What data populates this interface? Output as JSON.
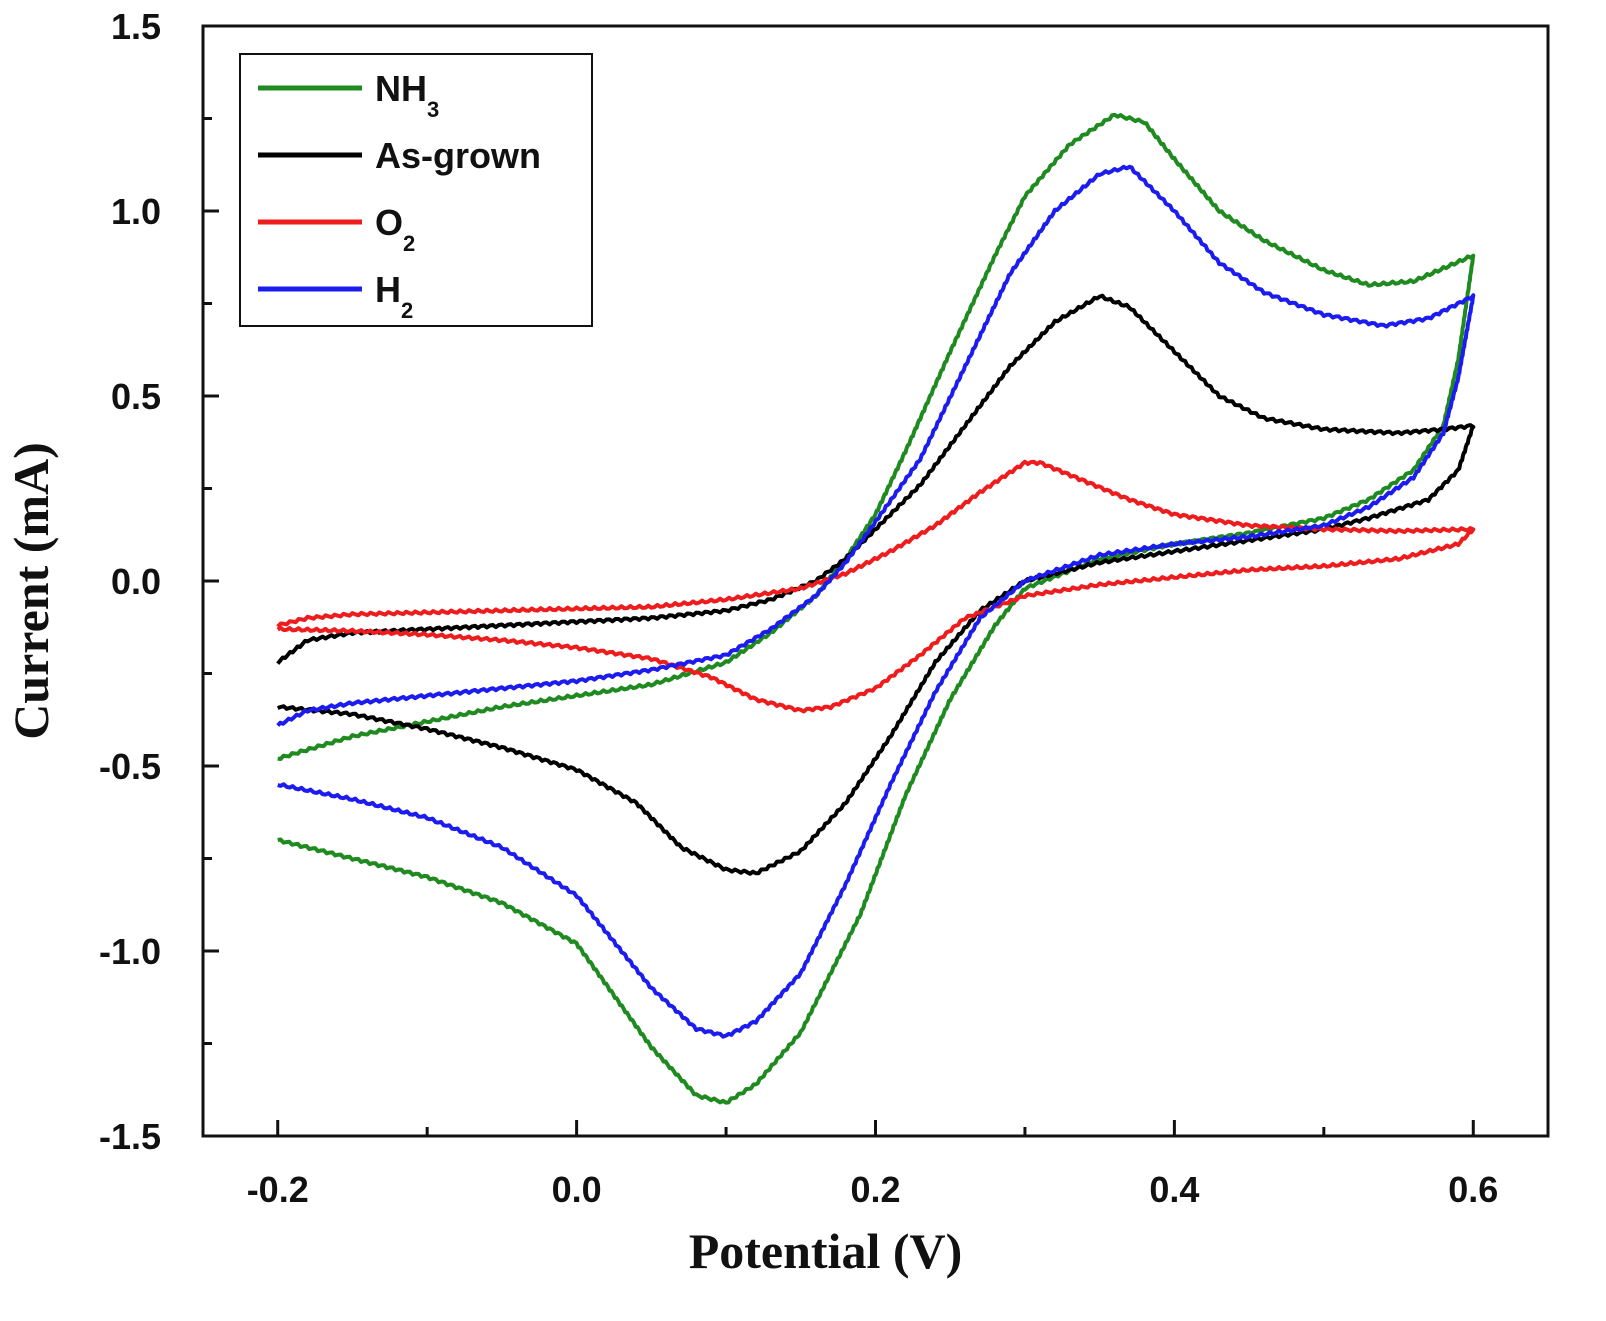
{
  "chart_data": {
    "type": "line",
    "title": "",
    "xlabel": "Potential (V)",
    "ylabel": "Current (mA)",
    "xlim": [
      -0.25,
      0.65
    ],
    "ylim": [
      -1.5,
      1.5
    ],
    "x_ticks": [
      -0.2,
      0.0,
      0.2,
      0.4,
      0.6
    ],
    "x_tick_labels": [
      "-0.2",
      "0.0",
      "0.2",
      "0.4",
      "0.6"
    ],
    "y_ticks": [
      -1.5,
      -1.0,
      -0.5,
      0.0,
      0.5,
      1.0,
      1.5
    ],
    "y_tick_labels": [
      "-1.5",
      "-1.0",
      "-0.5",
      "0.0",
      "0.5",
      "1.0",
      "1.5"
    ],
    "grid": false,
    "legend_position": "top-left",
    "series": [
      {
        "name": "NH3",
        "legend_main": "NH",
        "legend_sub": "3",
        "color": "#1f8a1f",
        "forward": [
          [
            -0.2,
            -0.48
          ],
          [
            -0.15,
            -0.42
          ],
          [
            -0.1,
            -0.38
          ],
          [
            -0.05,
            -0.34
          ],
          [
            0.0,
            -0.31
          ],
          [
            0.05,
            -0.28
          ],
          [
            0.1,
            -0.22
          ],
          [
            0.13,
            -0.14
          ],
          [
            0.16,
            -0.04
          ],
          [
            0.18,
            0.06
          ],
          [
            0.2,
            0.18
          ],
          [
            0.22,
            0.35
          ],
          [
            0.25,
            0.62
          ],
          [
            0.28,
            0.88
          ],
          [
            0.3,
            1.04
          ],
          [
            0.33,
            1.18
          ],
          [
            0.36,
            1.26
          ],
          [
            0.38,
            1.24
          ],
          [
            0.4,
            1.14
          ],
          [
            0.43,
            1.0
          ],
          [
            0.46,
            0.92
          ],
          [
            0.5,
            0.84
          ],
          [
            0.53,
            0.8
          ],
          [
            0.56,
            0.81
          ],
          [
            0.6,
            0.88
          ]
        ],
        "reverse": [
          [
            0.6,
            0.88
          ],
          [
            0.59,
            0.6
          ],
          [
            0.58,
            0.42
          ],
          [
            0.56,
            0.3
          ],
          [
            0.53,
            0.22
          ],
          [
            0.5,
            0.17
          ],
          [
            0.45,
            0.13
          ],
          [
            0.4,
            0.1
          ],
          [
            0.35,
            0.06
          ],
          [
            0.3,
            -0.02
          ],
          [
            0.28,
            -0.12
          ],
          [
            0.25,
            -0.32
          ],
          [
            0.22,
            -0.58
          ],
          [
            0.19,
            -0.9
          ],
          [
            0.15,
            -1.22
          ],
          [
            0.12,
            -1.36
          ],
          [
            0.1,
            -1.41
          ],
          [
            0.08,
            -1.39
          ],
          [
            0.05,
            -1.26
          ],
          [
            0.0,
            -0.98
          ],
          [
            -0.05,
            -0.87
          ],
          [
            -0.1,
            -0.8
          ],
          [
            -0.15,
            -0.75
          ],
          [
            -0.2,
            -0.7
          ]
        ]
      },
      {
        "name": "As-grown",
        "color": "#000000",
        "forward": [
          [
            -0.2,
            -0.22
          ],
          [
            -0.18,
            -0.16
          ],
          [
            -0.15,
            -0.14
          ],
          [
            -0.1,
            -0.13
          ],
          [
            -0.05,
            -0.12
          ],
          [
            0.0,
            -0.11
          ],
          [
            0.05,
            -0.1
          ],
          [
            0.1,
            -0.08
          ],
          [
            0.13,
            -0.05
          ],
          [
            0.16,
            0.0
          ],
          [
            0.18,
            0.06
          ],
          [
            0.2,
            0.14
          ],
          [
            0.23,
            0.26
          ],
          [
            0.26,
            0.42
          ],
          [
            0.29,
            0.58
          ],
          [
            0.32,
            0.7
          ],
          [
            0.35,
            0.77
          ],
          [
            0.37,
            0.74
          ],
          [
            0.4,
            0.62
          ],
          [
            0.43,
            0.5
          ],
          [
            0.46,
            0.44
          ],
          [
            0.5,
            0.41
          ],
          [
            0.55,
            0.4
          ],
          [
            0.58,
            0.41
          ],
          [
            0.6,
            0.42
          ]
        ],
        "reverse": [
          [
            0.6,
            0.42
          ],
          [
            0.59,
            0.3
          ],
          [
            0.57,
            0.22
          ],
          [
            0.53,
            0.17
          ],
          [
            0.5,
            0.14
          ],
          [
            0.45,
            0.11
          ],
          [
            0.4,
            0.08
          ],
          [
            0.35,
            0.05
          ],
          [
            0.3,
            0.0
          ],
          [
            0.27,
            -0.08
          ],
          [
            0.24,
            -0.22
          ],
          [
            0.21,
            -0.42
          ],
          [
            0.18,
            -0.6
          ],
          [
            0.15,
            -0.73
          ],
          [
            0.12,
            -0.79
          ],
          [
            0.1,
            -0.78
          ],
          [
            0.07,
            -0.72
          ],
          [
            0.04,
            -0.6
          ],
          [
            0.0,
            -0.51
          ],
          [
            -0.05,
            -0.45
          ],
          [
            -0.1,
            -0.4
          ],
          [
            -0.15,
            -0.36
          ],
          [
            -0.2,
            -0.34
          ]
        ]
      },
      {
        "name": "O2",
        "legend_main": "O",
        "legend_sub": "2",
        "color": "#ee1c1c",
        "forward": [
          [
            -0.2,
            -0.12
          ],
          [
            -0.18,
            -0.1
          ],
          [
            -0.15,
            -0.09
          ],
          [
            -0.1,
            -0.085
          ],
          [
            -0.05,
            -0.08
          ],
          [
            0.0,
            -0.075
          ],
          [
            0.05,
            -0.07
          ],
          [
            0.1,
            -0.05
          ],
          [
            0.15,
            -0.02
          ],
          [
            0.18,
            0.02
          ],
          [
            0.21,
            0.08
          ],
          [
            0.24,
            0.15
          ],
          [
            0.27,
            0.24
          ],
          [
            0.3,
            0.32
          ],
          [
            0.31,
            0.32
          ],
          [
            0.34,
            0.27
          ],
          [
            0.37,
            0.22
          ],
          [
            0.4,
            0.18
          ],
          [
            0.45,
            0.15
          ],
          [
            0.5,
            0.14
          ],
          [
            0.55,
            0.135
          ],
          [
            0.6,
            0.14
          ]
        ],
        "reverse": [
          [
            0.6,
            0.14
          ],
          [
            0.59,
            0.1
          ],
          [
            0.55,
            0.06
          ],
          [
            0.5,
            0.04
          ],
          [
            0.45,
            0.03
          ],
          [
            0.4,
            0.01
          ],
          [
            0.35,
            -0.01
          ],
          [
            0.3,
            -0.04
          ],
          [
            0.26,
            -0.1
          ],
          [
            0.23,
            -0.2
          ],
          [
            0.2,
            -0.29
          ],
          [
            0.17,
            -0.34
          ],
          [
            0.15,
            -0.35
          ],
          [
            0.12,
            -0.32
          ],
          [
            0.09,
            -0.26
          ],
          [
            0.05,
            -0.21
          ],
          [
            0.0,
            -0.18
          ],
          [
            -0.05,
            -0.16
          ],
          [
            -0.1,
            -0.145
          ],
          [
            -0.15,
            -0.135
          ],
          [
            -0.2,
            -0.13
          ]
        ]
      },
      {
        "name": "H2",
        "legend_main": "H",
        "legend_sub": "2",
        "color": "#1c1cf0",
        "forward": [
          [
            -0.2,
            -0.39
          ],
          [
            -0.18,
            -0.35
          ],
          [
            -0.15,
            -0.33
          ],
          [
            -0.1,
            -0.31
          ],
          [
            -0.05,
            -0.29
          ],
          [
            0.0,
            -0.27
          ],
          [
            0.05,
            -0.24
          ],
          [
            0.1,
            -0.2
          ],
          [
            0.13,
            -0.13
          ],
          [
            0.16,
            -0.04
          ],
          [
            0.18,
            0.05
          ],
          [
            0.2,
            0.16
          ],
          [
            0.23,
            0.33
          ],
          [
            0.26,
            0.58
          ],
          [
            0.29,
            0.83
          ],
          [
            0.32,
            1.0
          ],
          [
            0.35,
            1.1
          ],
          [
            0.37,
            1.12
          ],
          [
            0.4,
            1.0
          ],
          [
            0.43,
            0.86
          ],
          [
            0.46,
            0.78
          ],
          [
            0.5,
            0.72
          ],
          [
            0.54,
            0.69
          ],
          [
            0.57,
            0.71
          ],
          [
            0.6,
            0.77
          ]
        ],
        "reverse": [
          [
            0.6,
            0.77
          ],
          [
            0.59,
            0.55
          ],
          [
            0.58,
            0.4
          ],
          [
            0.56,
            0.28
          ],
          [
            0.53,
            0.2
          ],
          [
            0.5,
            0.15
          ],
          [
            0.45,
            0.12
          ],
          [
            0.4,
            0.1
          ],
          [
            0.35,
            0.07
          ],
          [
            0.3,
            0.0
          ],
          [
            0.27,
            -0.1
          ],
          [
            0.24,
            -0.3
          ],
          [
            0.21,
            -0.55
          ],
          [
            0.18,
            -0.82
          ],
          [
            0.15,
            -1.06
          ],
          [
            0.12,
            -1.19
          ],
          [
            0.1,
            -1.23
          ],
          [
            0.08,
            -1.21
          ],
          [
            0.05,
            -1.1
          ],
          [
            0.0,
            -0.85
          ],
          [
            -0.05,
            -0.72
          ],
          [
            -0.1,
            -0.64
          ],
          [
            -0.15,
            -0.59
          ],
          [
            -0.2,
            -0.55
          ]
        ]
      }
    ]
  }
}
